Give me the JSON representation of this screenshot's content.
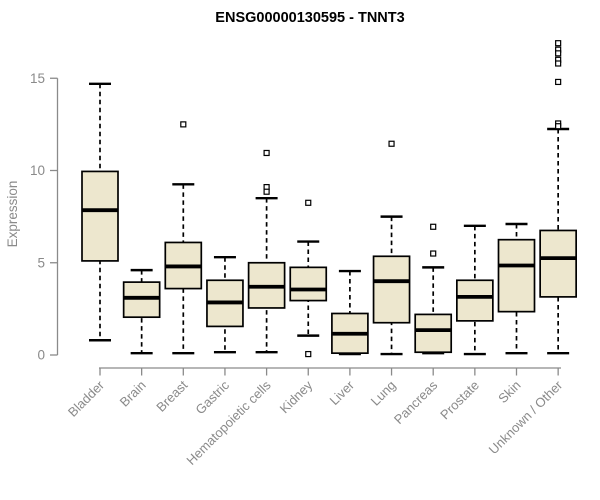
{
  "page": {
    "title": "ENSG00000130595 - TNNT3"
  },
  "chart_data": {
    "type": "boxplot",
    "title": "ENSG00000130595 - TNNT3",
    "xlabel": "",
    "ylabel": "Expression",
    "ylim": [
      0,
      15
    ],
    "yticks": [
      0,
      5,
      10,
      15
    ],
    "grid": false,
    "legend": "none",
    "colors": {
      "box_fill": "#ede7ce",
      "box_stroke": "#000000",
      "median": "#000000",
      "whisker": "#000000",
      "outlier_fill": "#ffffff",
      "outlier_stroke": "#000000",
      "axis": "#8a8a8a",
      "tick_text": "#8a8a8a",
      "title_text": "#000000"
    },
    "categories": [
      "Bladder",
      "Brain",
      "Breast",
      "Gastric",
      "Hematopoietic cells",
      "Kidney",
      "Liver",
      "Lung",
      "Pancreas",
      "Prostate",
      "Skin",
      "Unknown / Other"
    ],
    "boxes": [
      {
        "category": "Bladder",
        "low": 0.8,
        "q1": 5.1,
        "median": 7.85,
        "q3": 9.95,
        "high": 14.7,
        "outliers": []
      },
      {
        "category": "Brain",
        "low": 0.1,
        "q1": 2.05,
        "median": 3.1,
        "q3": 3.95,
        "high": 4.6,
        "outliers": []
      },
      {
        "category": "Breast",
        "low": 0.1,
        "q1": 3.6,
        "median": 4.8,
        "q3": 6.1,
        "high": 9.25,
        "outliers": [
          12.5
        ]
      },
      {
        "category": "Gastric",
        "low": 0.15,
        "q1": 1.55,
        "median": 2.85,
        "q3": 4.05,
        "high": 5.3,
        "outliers": []
      },
      {
        "category": "Hematopoietic cells",
        "low": 0.15,
        "q1": 2.55,
        "median": 3.7,
        "q3": 5.0,
        "high": 8.5,
        "outliers": [
          10.95,
          9.1,
          8.85
        ]
      },
      {
        "category": "Kidney",
        "low": 1.05,
        "q1": 2.95,
        "median": 3.55,
        "q3": 4.75,
        "high": 6.15,
        "outliers": [
          8.25,
          0.05
        ]
      },
      {
        "category": "Liver",
        "low": 0.05,
        "q1": 0.1,
        "median": 1.15,
        "q3": 2.25,
        "high": 4.55,
        "outliers": []
      },
      {
        "category": "Lung",
        "low": 0.05,
        "q1": 1.75,
        "median": 4.0,
        "q3": 5.35,
        "high": 7.5,
        "outliers": [
          11.45
        ]
      },
      {
        "category": "Pancreas",
        "low": 0.1,
        "q1": 0.15,
        "median": 1.35,
        "q3": 2.2,
        "high": 4.75,
        "outliers": [
          6.95,
          5.5
        ]
      },
      {
        "category": "Prostate",
        "low": 0.05,
        "q1": 1.85,
        "median": 3.15,
        "q3": 4.05,
        "high": 7.0,
        "outliers": []
      },
      {
        "category": "Skin",
        "low": 0.1,
        "q1": 2.35,
        "median": 4.85,
        "q3": 6.25,
        "high": 7.1,
        "outliers": []
      },
      {
        "category": "Unknown / Other",
        "low": 0.1,
        "q1": 3.15,
        "median": 5.25,
        "q3": 6.75,
        "high": 12.25,
        "outliers": [
          16.9,
          16.55,
          16.35,
          16.0,
          15.8,
          14.8,
          12.55,
          12.4
        ]
      }
    ]
  }
}
